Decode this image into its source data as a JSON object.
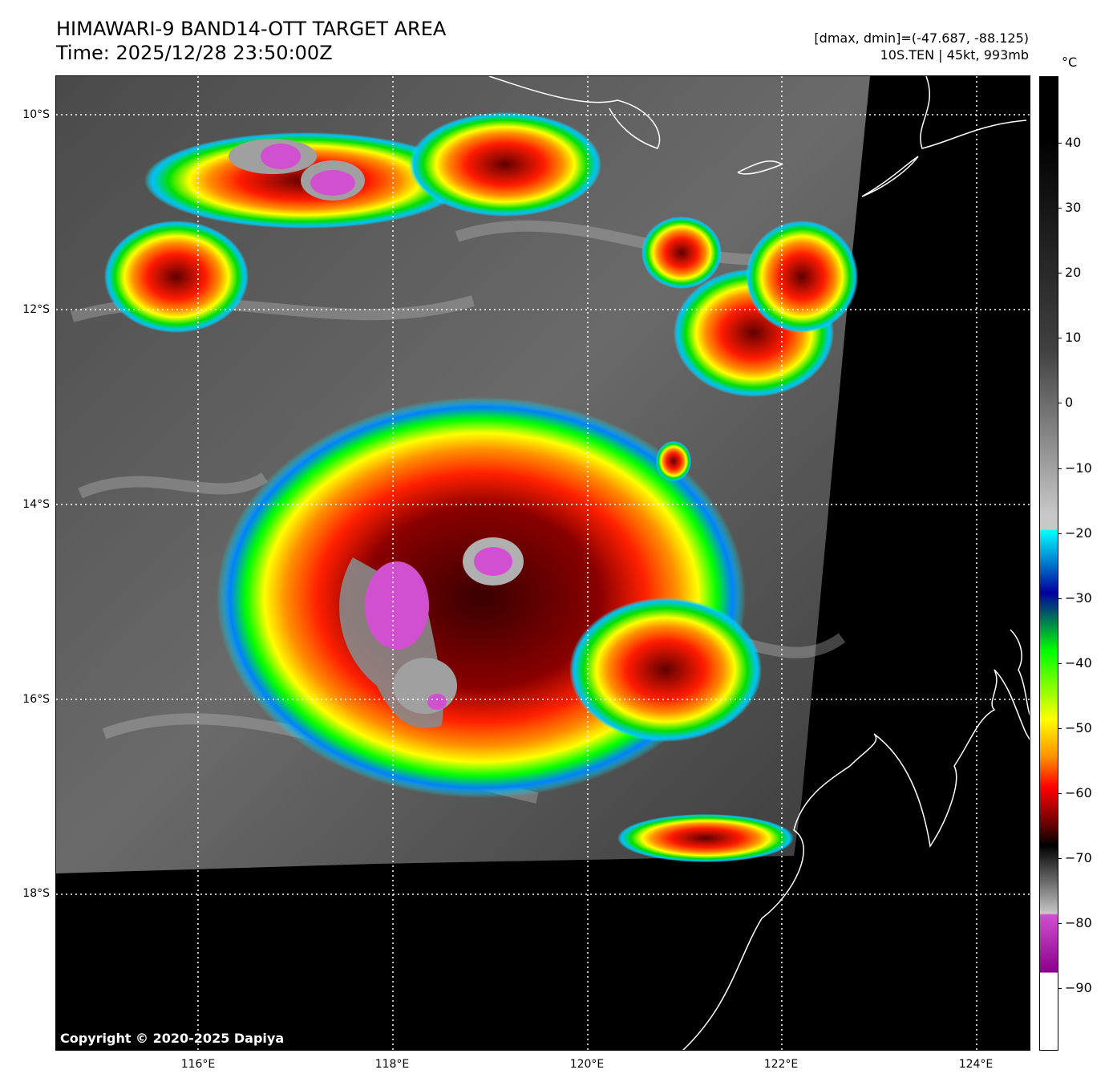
{
  "header": {
    "title_line1": "HIMAWARI-9 BAND14-OTT TARGET AREA",
    "title_line2": "Time: 2025/12/28 23:50:00Z",
    "stats": "[dmax, dmin]=(-47.687, -88.125)",
    "storm": "10S.TEN | 45kt, 993mb"
  },
  "map": {
    "lat_labels": [
      "10°S",
      "12°S",
      "14°S",
      "16°S",
      "18°S"
    ],
    "lon_labels": [
      "116°E",
      "118°E",
      "120°E",
      "122°E",
      "124°E"
    ],
    "copyright": "Copyright © 2020-2025 Dapiya"
  },
  "colorbar": {
    "unit": "°C",
    "ticks": [
      "40",
      "30",
      "20",
      "10",
      "0",
      "−10",
      "−20",
      "−30",
      "−40",
      "−50",
      "−60",
      "−70",
      "−80",
      "−90"
    ],
    "colors": {
      "warm": "#000000",
      "gray_light": "#c8c8c8",
      "cyan": "#00ffff",
      "blue": "#0000a0",
      "green": "#00ff00",
      "yellow": "#ffff00",
      "orange": "#ff8c00",
      "red": "#ff0000",
      "dark_red": "#600000",
      "magenta": "#d050d0",
      "purple": "#8b008b",
      "white": "#ffffff"
    }
  }
}
